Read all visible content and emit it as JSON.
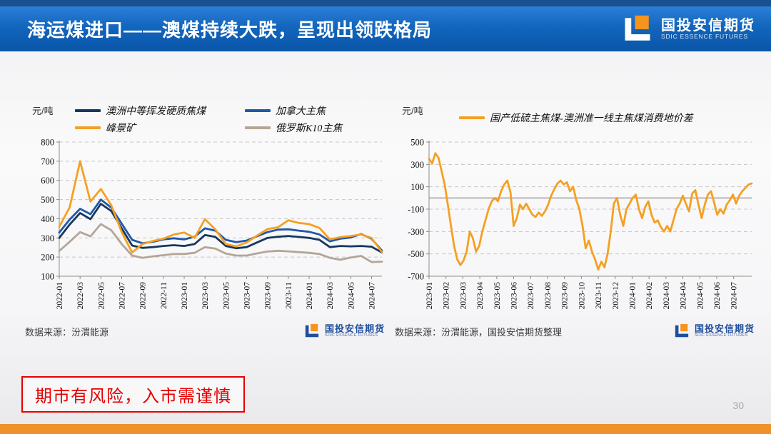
{
  "slide": {
    "header": {
      "title": "海运煤进口——澳煤持续大跌，呈现出领跌格局",
      "brand_cn": "国投安信期货",
      "brand_en": "SDIC ESSENCE FUTURES"
    },
    "risk_notice": "期市有风险，入市需谨慎",
    "page_number": "30"
  },
  "colors": {
    "header_blue_top": "#2b7fd6",
    "header_blue_bottom": "#0a55a8",
    "top_strip_blue": "#19508f",
    "bottom_strip_orange": "#F0922B",
    "brand_blue": "#1F4E9C",
    "brand_orange": "#F7941E",
    "risk_red": "#E60000",
    "gridline_gray": "#c6c6c6",
    "axis_gray": "#8c8c8c",
    "zero_line_gray": "#7f7f7f"
  },
  "chart_data": [
    {
      "type": "line",
      "title": "",
      "unit_label": "元/吨",
      "source_note": "数据来源：汾渭能源",
      "ylim": [
        100,
        800
      ],
      "y_ticks": [
        800,
        700,
        600,
        500,
        400,
        300,
        200,
        100
      ],
      "grid": "dashed-horizontal",
      "zero_line": false,
      "x_span": 0.968,
      "x_tick_labels": [
        "2022-01",
        "2022-03",
        "2022-05",
        "2022-07",
        "2022-09",
        "2022-11",
        "2023-01",
        "2023-03",
        "2023-05",
        "2023-07",
        "2023-09",
        "2023-11",
        "2024-01",
        "2024-03",
        "2024-05",
        "2024-07"
      ],
      "legend": [
        {
          "name": "澳洲中等挥发硬质焦煤",
          "color": "#17375E"
        },
        {
          "name": "加拿大主焦",
          "color": "#2158A8"
        },
        {
          "name": "峰景矿",
          "color": "#F5A021"
        },
        {
          "name": "俄罗斯K10主焦",
          "color": "#B3A696"
        }
      ],
      "series": [
        {
          "name": "俄罗斯K10主焦",
          "color": "#B3A696",
          "values": [
            232,
            280,
            330,
            308,
            372,
            340,
            268,
            208,
            196,
            204,
            210,
            216,
            216,
            222,
            252,
            244,
            218,
            208,
            208,
            219,
            229,
            233,
            230,
            226,
            222,
            216,
            196,
            186,
            198,
            206,
            174,
            176
          ]
        },
        {
          "name": "澳洲中等挥发硬质焦煤",
          "color": "#17375E",
          "values": [
            300,
            370,
            430,
            398,
            478,
            440,
            350,
            260,
            248,
            252,
            258,
            262,
            258,
            268,
            315,
            305,
            258,
            246,
            252,
            276,
            300,
            306,
            310,
            305,
            300,
            290,
            252,
            258,
            256,
            258,
            254,
            224
          ]
        },
        {
          "name": "加拿大主焦",
          "color": "#2158A8",
          "values": [
            328,
            396,
            452,
            424,
            500,
            458,
            374,
            290,
            272,
            280,
            292,
            298,
            292,
            306,
            350,
            338,
            290,
            278,
            286,
            308,
            330,
            343,
            345,
            338,
            332,
            318,
            282,
            296,
            302,
            320,
            296,
            234
          ]
        },
        {
          "name": "峰景矿",
          "color": "#F5A021",
          "values": [
            358,
            460,
            700,
            490,
            555,
            470,
            330,
            224,
            268,
            284,
            296,
            318,
            328,
            300,
            398,
            344,
            268,
            256,
            276,
            312,
            346,
            355,
            392,
            378,
            372,
            352,
            292,
            304,
            310,
            318,
            300,
            226
          ]
        }
      ]
    },
    {
      "type": "line",
      "title": "",
      "unit_label": "元/吨",
      "source_note": "数据来源：汾渭能源，国投安信期货整理",
      "ylim": [
        -700,
        500
      ],
      "y_ticks": [
        500,
        300,
        100,
        -100,
        -300,
        -500,
        -700
      ],
      "grid": "dashed-horizontal",
      "zero_line": true,
      "x_span": 0.944,
      "x_tick_labels": [
        "2023-01",
        "2023-02",
        "2023-03",
        "2023-04",
        "2023-05",
        "2023-06",
        "2023-07",
        "2023-08",
        "2023-09",
        "2023-10",
        "2023-11",
        "2023-12",
        "2024-01",
        "2024-02",
        "2024-03",
        "2024-04",
        "2024-05",
        "2024-06",
        "2024-07"
      ],
      "legend": [
        {
          "name": "国产低硫主焦煤-澳洲准一线主焦煤消费地价差",
          "color": "#F5A021"
        }
      ],
      "series": [
        {
          "name": "国产低硫主焦煤-澳洲准一线主焦煤消费地价差",
          "color": "#F5A021",
          "values": [
            350,
            310,
            400,
            360,
            240,
            120,
            -60,
            -250,
            -430,
            -550,
            -600,
            -560,
            -480,
            -300,
            -360,
            -480,
            -430,
            -300,
            -200,
            -100,
            -30,
            0,
            -30,
            60,
            120,
            155,
            50,
            -250,
            -180,
            -60,
            -100,
            -50,
            -100,
            -150,
            -170,
            -130,
            -160,
            -120,
            -60,
            20,
            80,
            130,
            155,
            120,
            140,
            60,
            100,
            -20,
            -100,
            -250,
            -450,
            -380,
            -480,
            -550,
            -640,
            -570,
            -620,
            -500,
            -300,
            -50,
            0,
            -150,
            -250,
            -100,
            -50,
            0,
            30,
            -100,
            -180,
            -80,
            -30,
            -150,
            -220,
            -200,
            -260,
            -300,
            -250,
            -300,
            -200,
            -100,
            -50,
            20,
            -50,
            -120,
            40,
            70,
            -60,
            -180,
            -60,
            30,
            60,
            -40,
            -150,
            -100,
            -140,
            -60,
            -20,
            30,
            -50,
            20,
            60,
            90,
            120,
            130
          ]
        }
      ]
    }
  ]
}
